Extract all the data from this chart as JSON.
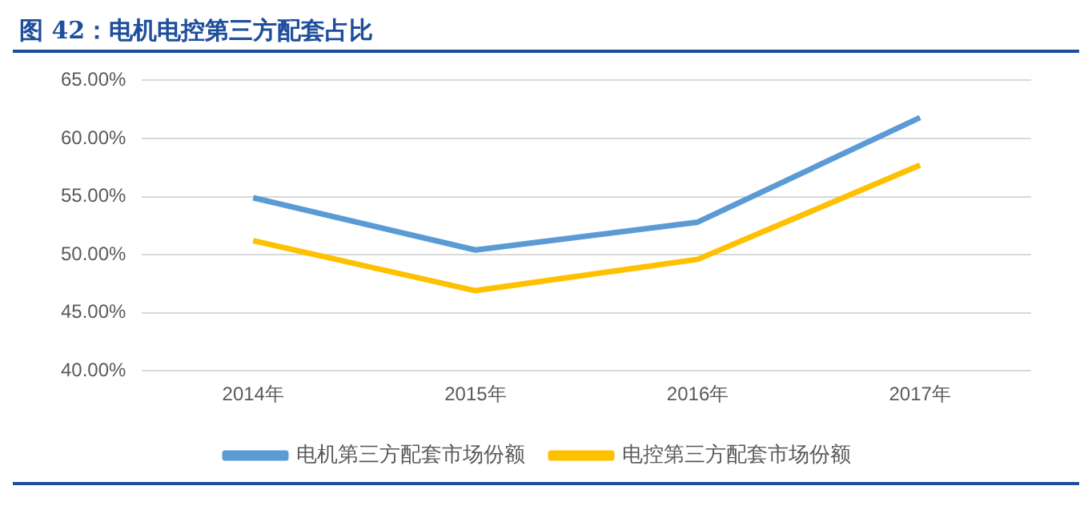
{
  "chart_data": {
    "type": "line",
    "title": "图 42：电机电控第三方配套占比",
    "categories": [
      "2014年",
      "2015年",
      "2016年",
      "2017年"
    ],
    "series": [
      {
        "name": "电机第三方配套市场份额",
        "color": "#5b9bd5",
        "values": [
          54.9,
          50.4,
          52.8,
          61.8
        ]
      },
      {
        "name": "电控第三方配套市场份额",
        "color": "#ffc000",
        "values": [
          51.2,
          46.9,
          49.6,
          57.7
        ]
      }
    ],
    "ylim": [
      40,
      65
    ],
    "yticks": [
      {
        "value": 40,
        "label": "40.00%"
      },
      {
        "value": 45,
        "label": "45.00%"
      },
      {
        "value": 50,
        "label": "50.00%"
      },
      {
        "value": 55,
        "label": "55.00%"
      },
      {
        "value": 60,
        "label": "60.00%"
      },
      {
        "value": 65,
        "label": "65.00%"
      }
    ],
    "grid": "y",
    "legend": "bottom",
    "marker": "none",
    "line_style": "solid"
  }
}
